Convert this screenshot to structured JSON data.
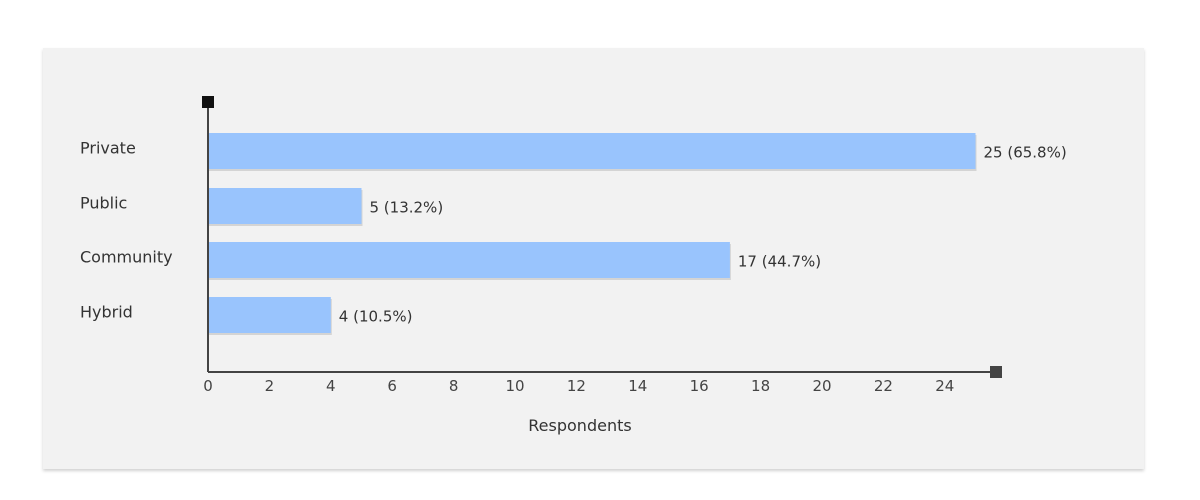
{
  "chart_data": {
    "type": "bar",
    "orientation": "horizontal",
    "categories": [
      "Private",
      "Public",
      "Community",
      "Hybrid"
    ],
    "values": [
      25,
      5,
      17,
      4
    ],
    "value_labels": [
      "25 (65.8%)",
      "5 (13.2%)",
      "17 (44.7%)",
      "4 (10.5%)"
    ],
    "xlabel": "Respondents",
    "xlim": [
      0,
      25
    ],
    "xticks": [
      "0",
      "2",
      "4",
      "6",
      "8",
      "10",
      "12",
      "14",
      "16",
      "18",
      "20",
      "22",
      "24"
    ],
    "grid": false,
    "legend": "none"
  },
  "colors": {
    "bar": "#99c4fd",
    "axis": "#444444",
    "card_background": "#f2f2f2"
  }
}
